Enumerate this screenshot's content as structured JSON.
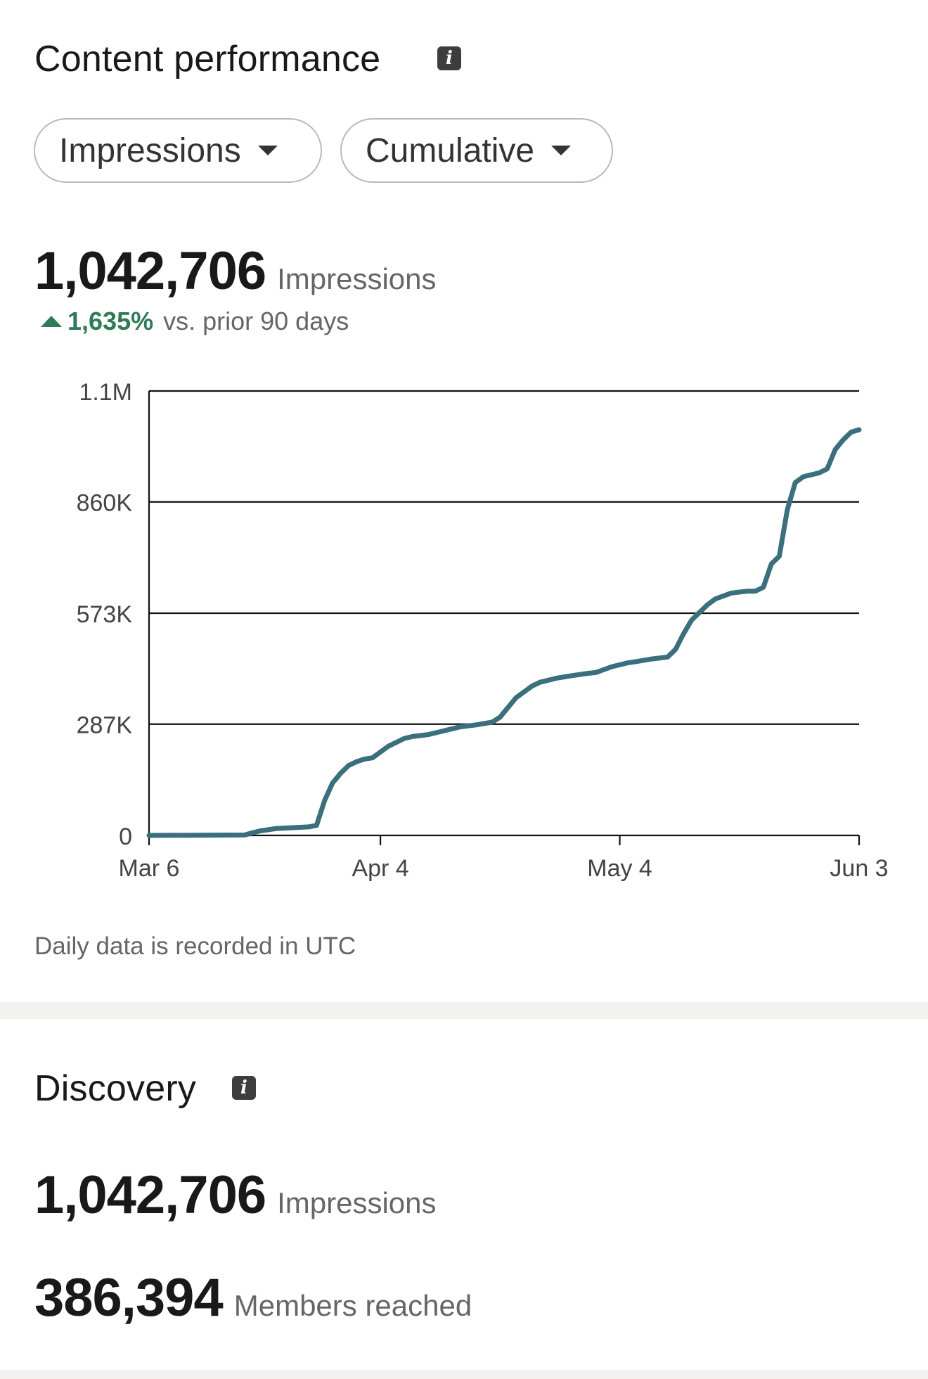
{
  "content_performance": {
    "title": "Content performance",
    "filters": {
      "metric_label": "Impressions",
      "mode_label": "Cumulative"
    },
    "total_value": "1,042,706",
    "total_unit": "Impressions",
    "change_pct": "1,635%",
    "change_label": "vs. prior 90 days",
    "note": "Daily data is recorded in UTC"
  },
  "chart_data": {
    "type": "line",
    "x_tick_labels": [
      "Mar 6",
      "Apr 4",
      "May 4",
      "Jun 3"
    ],
    "y_tick_labels": [
      "0",
      "287K",
      "573K",
      "860K",
      "1.1M"
    ],
    "y_ticks": [
      0,
      287000,
      573000,
      860000,
      1146000
    ],
    "xlim": [
      "2024-03-06",
      "2024-06-03"
    ],
    "ylim": [
      0,
      1146000
    ],
    "grid": true,
    "series": [
      {
        "color": "#3b6f7d",
        "x": [
          "2024-03-06",
          "2024-03-18",
          "2024-03-19",
          "2024-03-20",
          "2024-03-22",
          "2024-03-24",
          "2024-03-26",
          "2024-03-27",
          "2024-03-28",
          "2024-03-29",
          "2024-03-30",
          "2024-03-31",
          "2024-04-01",
          "2024-04-02",
          "2024-04-03",
          "2024-04-04",
          "2024-04-05",
          "2024-04-07",
          "2024-04-08",
          "2024-04-10",
          "2024-04-12",
          "2024-04-14",
          "2024-04-16",
          "2024-04-18",
          "2024-04-19",
          "2024-04-21",
          "2024-04-23",
          "2024-04-24",
          "2024-04-26",
          "2024-04-28",
          "2024-04-30",
          "2024-05-01",
          "2024-05-03",
          "2024-05-05",
          "2024-05-06",
          "2024-05-08",
          "2024-05-10",
          "2024-05-11",
          "2024-05-12",
          "2024-05-13",
          "2024-05-14",
          "2024-05-15",
          "2024-05-16",
          "2024-05-18",
          "2024-05-20",
          "2024-05-21",
          "2024-05-22",
          "2024-05-23",
          "2024-05-24",
          "2024-05-25",
          "2024-05-26",
          "2024-05-27",
          "2024-05-28",
          "2024-05-29",
          "2024-05-30",
          "2024-05-31",
          "2024-06-01",
          "2024-06-02",
          "2024-06-03"
        ],
        "y": [
          0,
          1000,
          7000,
          12000,
          18000,
          20000,
          22000,
          26000,
          90000,
          135000,
          160000,
          180000,
          190000,
          197000,
          200000,
          215000,
          230000,
          250000,
          255000,
          260000,
          270000,
          280000,
          285000,
          292000,
          305000,
          355000,
          385000,
          395000,
          405000,
          412000,
          418000,
          420000,
          435000,
          445000,
          448000,
          455000,
          460000,
          480000,
          520000,
          555000,
          575000,
          595000,
          610000,
          625000,
          630000,
          630000,
          640000,
          700000,
          720000,
          840000,
          910000,
          925000,
          930000,
          935000,
          945000,
          995000,
          1020000,
          1040000,
          1046000
        ]
      }
    ]
  },
  "discovery": {
    "title": "Discovery",
    "impressions_value": "1,042,706",
    "impressions_label": "Impressions",
    "members_value": "386,394",
    "members_label": "Members reached"
  }
}
